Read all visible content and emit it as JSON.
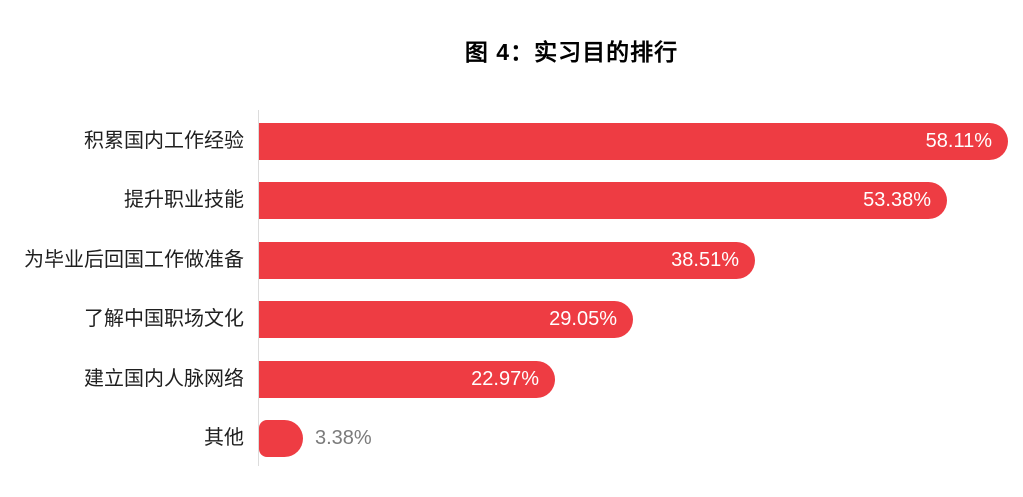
{
  "title": "图 4：实习目的排行",
  "colors": {
    "bar": "#ee3c43",
    "value_label_inside": "#ffffff",
    "value_label_outside": "#7b7b7b",
    "category_label": "#1f1f1f",
    "axis_line": "#dcdcdc",
    "title": "#000000",
    "background": "#ffffff"
  },
  "chart_data": {
    "type": "bar",
    "orientation": "horizontal",
    "title": "图 4：实习目的排行",
    "categories": [
      "积累国内工作经验",
      "提升职业技能",
      "为毕业后回国工作做准备",
      "了解中国职场文化",
      "建立国内人脉网络",
      "其他"
    ],
    "values": [
      58.11,
      53.38,
      38.51,
      29.05,
      22.97,
      3.38
    ],
    "value_labels": [
      "58.11%",
      "53.38%",
      "38.51%",
      "29.05%",
      "22.97%",
      "3.38%"
    ],
    "xlim": [
      0,
      60
    ],
    "grid": false,
    "legend": false,
    "bar_color": "#ee3c43",
    "value_label_position_rule": "inside-right for large bars, outside-right gray for smallest bar"
  }
}
